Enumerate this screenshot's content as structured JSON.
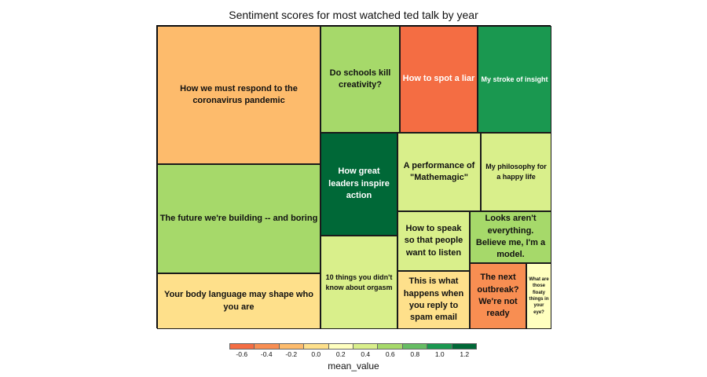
{
  "chart_data": {
    "type": "treemap",
    "title": "Sentiment scores for most watched ted talk by year",
    "tiles": [
      {
        "label": "How we must respond to the coronavirus pandemic",
        "mean_value": -0.2
      },
      {
        "label": "The future we're building -- and boring",
        "mean_value": 0.6
      },
      {
        "label": "Your body language may shape who you are",
        "mean_value": 0.05
      },
      {
        "label": "Do schools kill creativity?",
        "mean_value": 0.6
      },
      {
        "label": "How to spot a liar",
        "mean_value": -0.55
      },
      {
        "label": "My stroke of insight",
        "mean_value": 0.9
      },
      {
        "label": "How great leaders inspire action",
        "mean_value": 1.3
      },
      {
        "label": "A performance of \"Mathemagic\"",
        "mean_value": 0.3
      },
      {
        "label": "My philosophy for a happy life",
        "mean_value": 0.5
      },
      {
        "label": "10 things you didn't know about orgasm",
        "mean_value": 0.3
      },
      {
        "label": "How to speak so that people want to listen",
        "mean_value": 0.5
      },
      {
        "label": "Looks aren't everything. Believe me, I'm a model.",
        "mean_value": 0.7
      },
      {
        "label": "This is what happens when you reply to spam email",
        "mean_value": 0.05
      },
      {
        "label": "The next outbreak? We're not ready",
        "mean_value": -0.3
      },
      {
        "label": "What are those floaty things in your eye?",
        "mean_value": 0.15
      }
    ],
    "legend": {
      "title": "mean_value",
      "ticks": [
        "-0.6",
        "-0.4",
        "-0.2",
        "0.0",
        "0.2",
        "0.4",
        "0.6",
        "0.8",
        "1.0",
        "1.2"
      ],
      "colors": [
        "#f46d43",
        "#f88e52",
        "#fdbb6c",
        "#fee08b",
        "#ffffbf",
        "#d9ef8b",
        "#a6d96a",
        "#66bd63",
        "#1a9850",
        "#006837"
      ]
    }
  }
}
